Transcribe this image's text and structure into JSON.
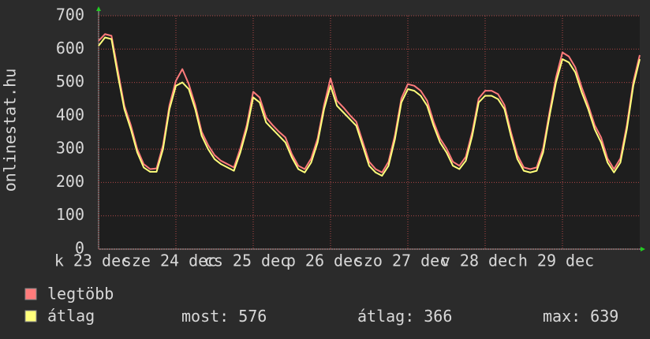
{
  "chart_data": {
    "type": "line",
    "y_label": "onlinestat.hu",
    "x_labels": [
      "k 23 dec",
      "sze 24 dec",
      "cs 25 dec",
      "p 26 dec",
      "szo 27 dec",
      "v 28 dec",
      "h 29 dec"
    ],
    "ylim": [
      0,
      700
    ],
    "yticks": [
      0,
      100,
      200,
      300,
      400,
      500,
      600,
      700
    ],
    "grid": true,
    "series": [
      {
        "name": "legtöbb",
        "color": "#ff7b7b",
        "values": [
          625,
          645,
          640,
          535,
          430,
          372,
          300,
          255,
          240,
          242,
          312,
          432,
          505,
          540,
          495,
          432,
          352,
          312,
          282,
          265,
          255,
          245,
          302,
          372,
          472,
          455,
          395,
          372,
          352,
          335,
          285,
          250,
          240,
          272,
          332,
          432,
          512,
          445,
          425,
          402,
          382,
          322,
          262,
          240,
          230,
          262,
          342,
          452,
          495,
          490,
          475,
          445,
          382,
          332,
          302,
          262,
          250,
          277,
          352,
          452,
          475,
          475,
          465,
          432,
          352,
          282,
          245,
          240,
          245,
          302,
          412,
          515,
          590,
          578,
          545,
          485,
          432,
          372,
          335,
          272,
          240,
          272,
          372,
          502,
          582
        ]
      },
      {
        "name": "átlag",
        "color": "#ffff7b",
        "values": [
          610,
          635,
          630,
          520,
          420,
          360,
          290,
          245,
          232,
          232,
          300,
          420,
          490,
          500,
          480,
          420,
          340,
          300,
          270,
          255,
          245,
          235,
          290,
          360,
          455,
          440,
          380,
          360,
          340,
          320,
          275,
          240,
          230,
          260,
          320,
          420,
          490,
          430,
          410,
          390,
          370,
          310,
          250,
          230,
          220,
          250,
          330,
          440,
          480,
          475,
          460,
          430,
          370,
          320,
          290,
          250,
          240,
          265,
          340,
          440,
          460,
          460,
          450,
          420,
          340,
          270,
          235,
          230,
          235,
          290,
          400,
          500,
          570,
          560,
          530,
          470,
          420,
          360,
          320,
          260,
          230,
          260,
          360,
          490,
          570
        ]
      }
    ],
    "stats": [
      {
        "label": "most:",
        "value": 576
      },
      {
        "label": "átlag:",
        "value": 366
      },
      {
        "label": "max:",
        "value": 639
      }
    ]
  }
}
